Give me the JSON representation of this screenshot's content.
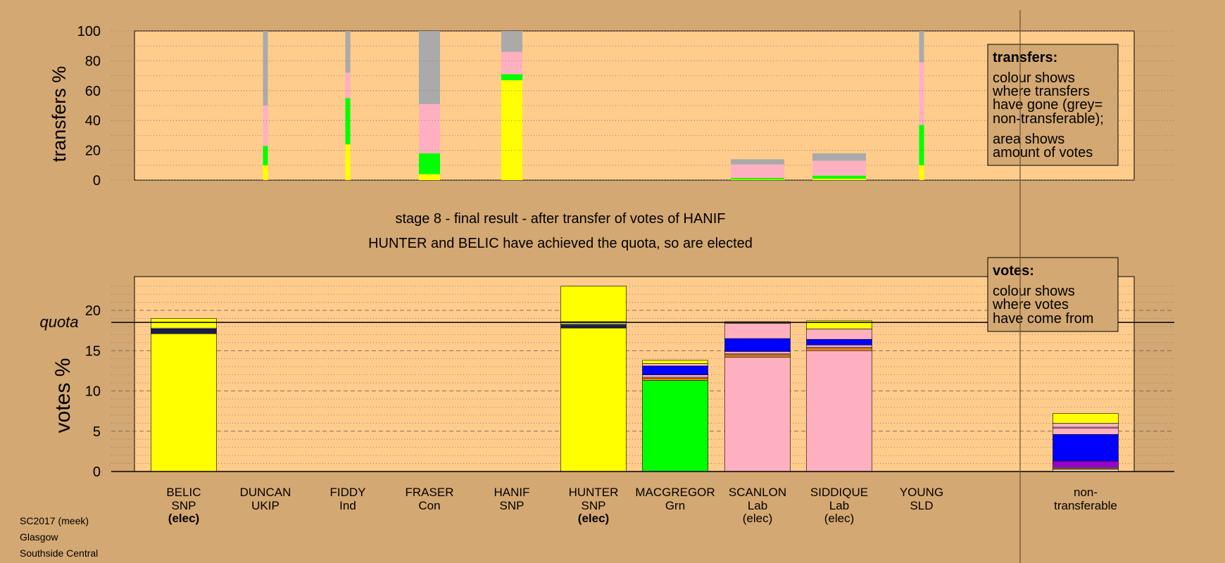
{
  "chart_data": {
    "type": "bar",
    "stage_text": "stage 8 - final result - after transfer of votes of HANIF",
    "result_text": "HUNTER and BELIC have achieved the quota, so are elected",
    "footer": [
      "SC2017 (meek)",
      "Glasgow",
      "Southside Central"
    ],
    "colors": {
      "SNP": "#ffff00",
      "SNP_dark": "#1a1a4d",
      "UKIP": "#9900cc",
      "Ind": "#ffffff",
      "Con": "#0000ff",
      "Grn": "#00ff00",
      "Lab": "#ffb0c0",
      "SLD": "#ff8000",
      "nontransferable": "#aaaaaa"
    },
    "transfers": {
      "ylabel": "transfers %",
      "ylim": [
        0,
        100
      ],
      "yticks": [
        0,
        20,
        40,
        60,
        80,
        100
      ],
      "legend": {
        "title": "transfers:",
        "line1": "colour shows",
        "line2": "where transfers",
        "line3": "have gone (grey=",
        "line4": "non-transferable);",
        "line5": "area shows",
        "line6": "amount of votes"
      },
      "columns": [
        {
          "candidate": "DUNCAN",
          "width": "thin",
          "segments": [
            {
              "party": "SNP",
              "value": 10
            },
            {
              "party": "Grn",
              "value": 13
            },
            {
              "party": "Lab",
              "value": 27
            },
            {
              "party": "nontransferable",
              "value": 50
            }
          ]
        },
        {
          "candidate": "FIDDY",
          "width": "thin",
          "segments": [
            {
              "party": "SNP",
              "value": 24
            },
            {
              "party": "Grn",
              "value": 31
            },
            {
              "party": "Lab",
              "value": 17
            },
            {
              "party": "nontransferable",
              "value": 28
            }
          ]
        },
        {
          "candidate": "FRASER",
          "width": "wide",
          "segments": [
            {
              "party": "SNP",
              "value": 4
            },
            {
              "party": "Grn",
              "value": 14
            },
            {
              "party": "Lab",
              "value": 33
            },
            {
              "party": "nontransferable",
              "value": 49
            }
          ]
        },
        {
          "candidate": "HANIF",
          "width": "wide",
          "segments": [
            {
              "party": "SNP",
              "value": 67
            },
            {
              "party": "Grn",
              "value": 4
            },
            {
              "party": "Lab",
              "value": 15
            },
            {
              "party": "nontransferable",
              "value": 14
            }
          ]
        },
        {
          "candidate": "SCANLON",
          "width": "full",
          "segments": [
            {
              "party": "SNP",
              "value": 0.5
            },
            {
              "party": "Grn",
              "value": 1
            },
            {
              "party": "Lab",
              "value": 9
            },
            {
              "party": "nontransferable",
              "value": 3.5
            }
          ]
        },
        {
          "candidate": "SIDDIQUE",
          "width": "full",
          "segments": [
            {
              "party": "SNP",
              "value": 1
            },
            {
              "party": "Grn",
              "value": 2
            },
            {
              "party": "Lab",
              "value": 10
            },
            {
              "party": "nontransferable",
              "value": 5
            }
          ]
        },
        {
          "candidate": "YOUNG",
          "width": "thin",
          "segments": [
            {
              "party": "SNP",
              "value": 10
            },
            {
              "party": "Grn",
              "value": 27
            },
            {
              "party": "Lab",
              "value": 42
            },
            {
              "party": "nontransferable",
              "value": 21
            }
          ]
        }
      ]
    },
    "votes": {
      "ylabel": "votes %",
      "ylim": [
        0,
        24
      ],
      "yticks": [
        0,
        5,
        10,
        15,
        20
      ],
      "quota": 18.5,
      "quota_label": "quota",
      "legend": {
        "title": "votes:",
        "line1": "colour shows",
        "line2": "where votes",
        "line3": "have come from"
      },
      "candidates": [
        {
          "name": "BELIC",
          "party": "SNP",
          "status": "(elec)",
          "status_bold": true,
          "segments": [
            {
              "party": "SNP",
              "value": 17.1
            },
            {
              "party": "SNP_dark",
              "value": 0.6
            },
            {
              "party": "Ind",
              "value": 0.1
            },
            {
              "party": "SNP",
              "value": 1.2
            }
          ]
        },
        {
          "name": "DUNCAN",
          "party": "UKIP",
          "status": "",
          "status_bold": false,
          "segments": []
        },
        {
          "name": "FIDDY",
          "party": "Ind",
          "status": "",
          "status_bold": false,
          "segments": []
        },
        {
          "name": "FRASER",
          "party": "Con",
          "status": "",
          "status_bold": false,
          "segments": []
        },
        {
          "name": "HANIF",
          "party": "SNP",
          "status": "",
          "status_bold": false,
          "segments": []
        },
        {
          "name": "HUNTER",
          "party": "SNP",
          "status": "(elec)",
          "status_bold": true,
          "segments": [
            {
              "party": "SNP",
              "value": 17.8
            },
            {
              "party": "SNP_dark",
              "value": 0.4
            },
            {
              "party": "Ind",
              "value": 0.1
            },
            {
              "party": "SNP",
              "value": 0.2
            },
            {
              "party": "Lab",
              "value": 0.1
            },
            {
              "party": "SNP",
              "value": 4.4
            }
          ]
        },
        {
          "name": "MACGREGOR",
          "party": "Grn",
          "status": "",
          "status_bold": false,
          "segments": [
            {
              "party": "Grn",
              "value": 11.3
            },
            {
              "party": "SLD",
              "value": 0.3
            },
            {
              "party": "Ind",
              "value": 0.1
            },
            {
              "party": "Lab",
              "value": 0.3
            },
            {
              "party": "Con",
              "value": 1.1
            },
            {
              "party": "Lab",
              "value": 0.3
            },
            {
              "party": "SNP",
              "value": 0.4
            }
          ]
        },
        {
          "name": "SCANLON",
          "party": "Lab",
          "status": "(elec)",
          "status_bold": false,
          "segments": [
            {
              "party": "Lab",
              "value": 14.2
            },
            {
              "party": "SLD",
              "value": 0.3
            },
            {
              "party": "Ind",
              "value": 0.1
            },
            {
              "party": "Lab",
              "value": 0.3
            },
            {
              "party": "Con",
              "value": 1.6
            },
            {
              "party": "Lab",
              "value": 1.9
            },
            {
              "party": "SNP",
              "value": 0.2
            }
          ]
        },
        {
          "name": "SIDDIQUE",
          "party": "Lab",
          "status": "(elec)",
          "status_bold": false,
          "segments": [
            {
              "party": "Lab",
              "value": 15.0
            },
            {
              "party": "SLD",
              "value": 0.3
            },
            {
              "party": "Ind",
              "value": 0.1
            },
            {
              "party": "Lab",
              "value": 0.3
            },
            {
              "party": "Con",
              "value": 0.7
            },
            {
              "party": "Lab",
              "value": 1.3
            },
            {
              "party": "SNP",
              "value": 1.0
            }
          ]
        },
        {
          "name": "YOUNG",
          "party": "SLD",
          "status": "",
          "status_bold": false,
          "segments": []
        }
      ],
      "nontransferable": {
        "label_line1": "non-",
        "label_line2": "transferable",
        "segments": [
          {
            "party": "Ind",
            "value": 0.25
          },
          {
            "party": "SLD",
            "value": 0.15
          },
          {
            "party": "Ind",
            "value": 0.1
          },
          {
            "party": "UKIP",
            "value": 0.8
          },
          {
            "party": "Con",
            "value": 3.3
          },
          {
            "party": "Lab",
            "value": 0.8
          },
          {
            "party": "Ind",
            "value": 0.1
          },
          {
            "party": "Lab",
            "value": 0.5
          },
          {
            "party": "SNP",
            "value": 1.2
          }
        ]
      }
    }
  }
}
